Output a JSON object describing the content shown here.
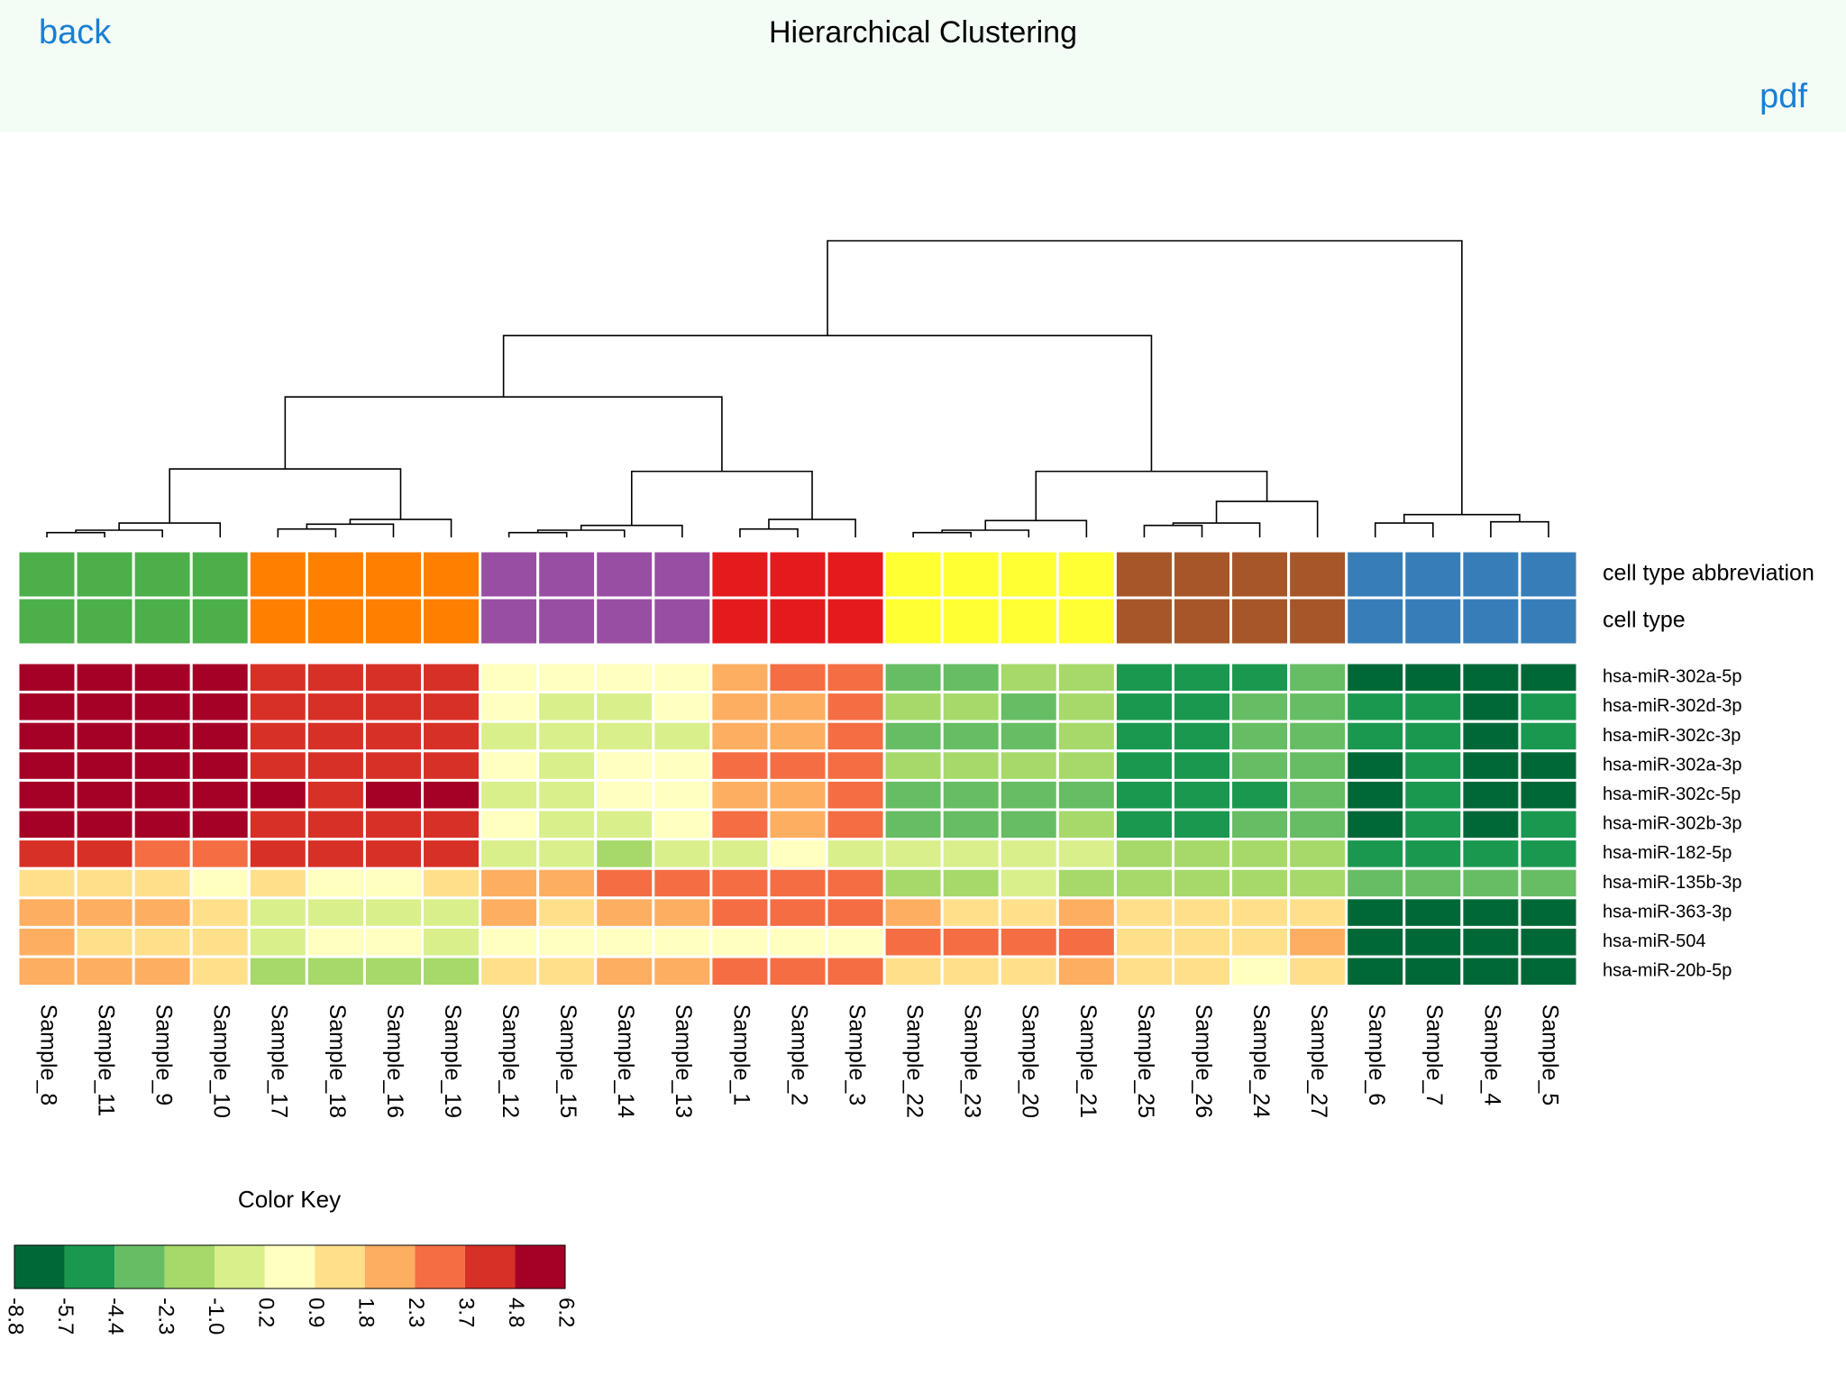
{
  "header": {
    "back": "back",
    "title": "Hierarchical Clustering",
    "pdf": "pdf"
  },
  "chart_data": {
    "type": "heatmap",
    "columns": [
      "Sample_8",
      "Sample_11",
      "Sample_9",
      "Sample_10",
      "Sample_17",
      "Sample_18",
      "Sample_16",
      "Sample_19",
      "Sample_12",
      "Sample_15",
      "Sample_14",
      "Sample_13",
      "Sample_1",
      "Sample_2",
      "Sample_3",
      "Sample_22",
      "Sample_23",
      "Sample_20",
      "Sample_21",
      "Sample_25",
      "Sample_26",
      "Sample_24",
      "Sample_27",
      "Sample_6",
      "Sample_7",
      "Sample_4",
      "Sample_5"
    ],
    "rows": [
      "hsa-miR-302a-5p",
      "hsa-miR-302d-3p",
      "hsa-miR-302c-3p",
      "hsa-miR-302a-3p",
      "hsa-miR-302c-5p",
      "hsa-miR-302b-3p",
      "hsa-miR-182-5p",
      "hsa-miR-135b-3p",
      "hsa-miR-363-3p",
      "hsa-miR-504",
      "hsa-miR-20b-5p"
    ],
    "values": [
      [
        5.5,
        5.5,
        5.5,
        5.5,
        4.2,
        4.2,
        4.2,
        4.2,
        0.6,
        0.6,
        0.6,
        0.6,
        2.0,
        3.0,
        3.0,
        -3.4,
        -3.4,
        -1.6,
        -1.6,
        -5.0,
        -5.0,
        -5.0,
        -3.4,
        -7.3,
        -7.3,
        -7.3,
        -7.3
      ],
      [
        5.5,
        5.5,
        5.5,
        5.5,
        4.2,
        4.2,
        4.2,
        4.2,
        0.6,
        -0.4,
        -0.4,
        0.6,
        2.0,
        2.0,
        3.0,
        -1.6,
        -1.6,
        -3.4,
        -1.6,
        -5.0,
        -5.0,
        -3.4,
        -3.4,
        -5.0,
        -5.0,
        -7.3,
        -5.0
      ],
      [
        5.5,
        5.5,
        5.5,
        5.5,
        4.2,
        4.2,
        4.2,
        4.2,
        -0.4,
        -0.4,
        -0.4,
        -0.4,
        2.0,
        2.0,
        3.0,
        -3.4,
        -3.4,
        -3.4,
        -1.6,
        -5.0,
        -5.0,
        -3.4,
        -3.4,
        -5.0,
        -5.0,
        -7.3,
        -5.0
      ],
      [
        5.5,
        5.5,
        5.5,
        5.5,
        4.2,
        4.2,
        4.2,
        4.2,
        0.6,
        -0.4,
        0.6,
        0.6,
        3.0,
        3.0,
        3.0,
        -1.6,
        -1.6,
        -1.6,
        -1.6,
        -5.0,
        -5.0,
        -3.4,
        -3.4,
        -7.3,
        -5.0,
        -7.3,
        -7.3
      ],
      [
        5.5,
        5.5,
        5.5,
        5.5,
        5.5,
        4.2,
        5.5,
        5.5,
        -0.4,
        -0.4,
        0.6,
        0.6,
        2.0,
        2.0,
        3.0,
        -3.4,
        -3.4,
        -3.4,
        -3.4,
        -5.0,
        -5.0,
        -5.0,
        -3.4,
        -7.3,
        -5.0,
        -7.3,
        -7.3
      ],
      [
        5.5,
        5.5,
        5.5,
        5.5,
        4.2,
        4.2,
        4.2,
        4.2,
        0.6,
        -0.4,
        -0.4,
        0.6,
        3.0,
        2.0,
        3.0,
        -3.4,
        -3.4,
        -3.4,
        -1.6,
        -5.0,
        -5.0,
        -3.4,
        -3.4,
        -7.3,
        -5.0,
        -7.3,
        -5.0
      ],
      [
        4.2,
        4.2,
        3.0,
        3.0,
        4.2,
        4.2,
        4.2,
        4.2,
        -0.4,
        -0.4,
        -1.6,
        -0.4,
        -0.4,
        0.6,
        -0.4,
        -0.4,
        -0.4,
        -0.4,
        -0.4,
        -1.6,
        -1.6,
        -1.6,
        -1.6,
        -5.0,
        -5.0,
        -5.0,
        -5.0
      ],
      [
        1.4,
        1.4,
        1.4,
        0.6,
        1.4,
        0.6,
        0.6,
        1.4,
        2.0,
        2.0,
        3.0,
        3.0,
        3.0,
        3.0,
        3.0,
        -1.6,
        -1.6,
        -0.4,
        -1.6,
        -1.6,
        -1.6,
        -1.6,
        -1.6,
        -3.4,
        -3.4,
        -3.4,
        -3.4
      ],
      [
        2.0,
        2.0,
        2.0,
        1.4,
        -0.4,
        -0.4,
        -0.4,
        -0.4,
        2.0,
        1.4,
        2.0,
        2.0,
        3.0,
        3.0,
        3.0,
        2.0,
        1.4,
        1.4,
        2.0,
        1.4,
        1.4,
        1.4,
        1.4,
        -7.3,
        -7.3,
        -7.3,
        -7.3
      ],
      [
        2.0,
        1.4,
        1.4,
        1.4,
        -0.4,
        0.6,
        0.6,
        -0.4,
        0.6,
        0.6,
        0.6,
        0.6,
        0.6,
        0.6,
        0.6,
        3.0,
        3.0,
        3.0,
        3.0,
        1.4,
        1.4,
        1.4,
        2.0,
        -7.3,
        -7.3,
        -7.3,
        -7.3
      ],
      [
        2.0,
        2.0,
        2.0,
        1.4,
        -1.6,
        -1.6,
        -1.6,
        -1.6,
        1.4,
        1.4,
        2.0,
        2.0,
        3.0,
        3.0,
        3.0,
        1.4,
        1.4,
        1.4,
        2.0,
        1.4,
        1.4,
        0.6,
        1.4,
        -7.3,
        -7.3,
        -7.3,
        -7.3
      ]
    ],
    "annotations": [
      {
        "name": "cell type abbreviation",
        "colors": [
          "#4daf4a",
          "#4daf4a",
          "#4daf4a",
          "#4daf4a",
          "#ff7f00",
          "#ff7f00",
          "#ff7f00",
          "#ff7f00",
          "#984ea3",
          "#984ea3",
          "#984ea3",
          "#984ea3",
          "#e41a1c",
          "#e41a1c",
          "#e41a1c",
          "#ffff33",
          "#ffff33",
          "#ffff33",
          "#ffff33",
          "#a65628",
          "#a65628",
          "#a65628",
          "#a65628",
          "#377eb8",
          "#377eb8",
          "#377eb8",
          "#377eb8"
        ]
      },
      {
        "name": "cell type",
        "colors": [
          "#4daf4a",
          "#4daf4a",
          "#4daf4a",
          "#4daf4a",
          "#ff7f00",
          "#ff7f00",
          "#ff7f00",
          "#ff7f00",
          "#984ea3",
          "#984ea3",
          "#984ea3",
          "#984ea3",
          "#e41a1c",
          "#e41a1c",
          "#e41a1c",
          "#ffff33",
          "#ffff33",
          "#ffff33",
          "#ffff33",
          "#a65628",
          "#a65628",
          "#a65628",
          "#a65628",
          "#377eb8",
          "#377eb8",
          "#377eb8",
          "#377eb8"
        ]
      }
    ],
    "dendrogram": {
      "merges": [
        [
          0,
          1,
          4
        ],
        [
          27,
          2,
          6
        ],
        [
          28,
          3,
          12
        ],
        [
          4,
          5,
          7
        ],
        [
          30,
          6,
          11
        ],
        [
          31,
          7,
          15
        ],
        [
          29,
          32,
          57
        ],
        [
          8,
          9,
          4
        ],
        [
          34,
          10,
          6
        ],
        [
          35,
          11,
          10
        ],
        [
          12,
          13,
          7
        ],
        [
          37,
          14,
          15
        ],
        [
          36,
          38,
          55
        ],
        [
          33,
          39,
          117
        ],
        [
          15,
          16,
          4
        ],
        [
          41,
          17,
          6
        ],
        [
          42,
          18,
          14
        ],
        [
          19,
          20,
          10
        ],
        [
          44,
          21,
          12
        ],
        [
          45,
          22,
          30
        ],
        [
          43,
          46,
          55
        ],
        [
          40,
          47,
          168
        ],
        [
          23,
          24,
          12
        ],
        [
          25,
          26,
          13
        ],
        [
          49,
          50,
          19
        ],
        [
          48,
          51,
          247
        ]
      ]
    },
    "color_key": {
      "title": "Color Key",
      "breaks": [
        -8.8,
        -5.7,
        -4.4,
        -2.3,
        {
          "value": -1.0,
          "label": "-1.0"
        },
        0.2,
        0.9,
        1.8,
        2.3,
        3.7,
        4.8,
        6.2
      ],
      "colors": [
        "#006837",
        "#1a9850",
        "#66bd63",
        "#a6d96a",
        "#d9ef8b",
        "#ffffbf",
        "#fee08b",
        "#fdae61",
        "#f46d43",
        "#d73027",
        "#a50026"
      ]
    }
  }
}
